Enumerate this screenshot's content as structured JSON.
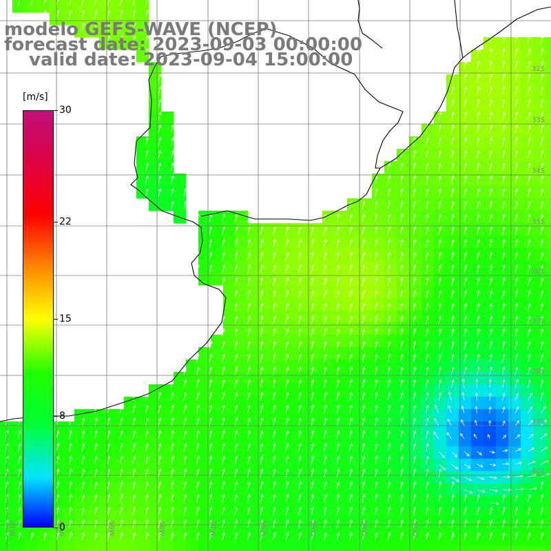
{
  "title": {
    "line1": "modelo GEFS-WAVE (NCEP)",
    "line2": "forecast date: 2023-09-03 00:00:00",
    "line3": "valid date: 2023-09-04 15:00:00"
  },
  "colorbar": {
    "unit": "[m/s]",
    "ticks": [
      "30",
      "22",
      "15",
      "8",
      "0"
    ],
    "tick_values": [
      30,
      22,
      15,
      8,
      0
    ],
    "min": 0,
    "max": 30,
    "colors": [
      "#0000ff",
      "#00e5ff",
      "#00ff30",
      "#20ff00",
      "#ffff00",
      "#ff8c00",
      "#ff0000",
      "#e00040",
      "#c0107a"
    ]
  },
  "map": {
    "lon_labels": [
      "61W",
      "60W",
      "59W",
      "58W",
      "57W",
      "56W",
      "55W",
      "54W",
      "53W"
    ],
    "lat_labels": [
      "32S",
      "33S",
      "34S",
      "35S",
      "36S",
      "37S",
      "38S",
      "39S",
      "40S"
    ],
    "land_color": "#ffffff",
    "grid_color": "#777777",
    "coast_color": "#000000"
  }
}
